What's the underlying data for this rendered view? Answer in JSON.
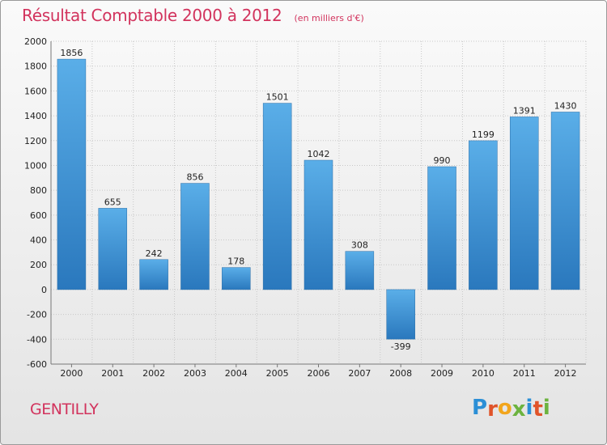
{
  "chart_data": {
    "type": "bar",
    "title": "Résultat Comptable 2000 à 2012",
    "subtitle": "(en milliers d'€)",
    "categories": [
      "2000",
      "2001",
      "2002",
      "2003",
      "2004",
      "2005",
      "2006",
      "2007",
      "2008",
      "2009",
      "2010",
      "2011",
      "2012"
    ],
    "values": [
      1856,
      655,
      242,
      856,
      178,
      1501,
      1042,
      308,
      -399,
      990,
      1199,
      1391,
      1430
    ],
    "ylim": [
      -600,
      2000
    ],
    "yticks": [
      -600,
      -400,
      -200,
      0,
      200,
      400,
      600,
      800,
      1000,
      1200,
      1400,
      1600,
      1800,
      2000
    ],
    "grid": true,
    "xlabel": "",
    "ylabel": ""
  },
  "location": "GENTILLY",
  "brand": {
    "letters": [
      "P",
      "r",
      "o",
      "x",
      "i",
      "t",
      "i"
    ],
    "colors": [
      "#2b8fd6",
      "#e0542a",
      "#f2a51c",
      "#6cb33f",
      "#2b8fd6",
      "#e0542a",
      "#6cb33f"
    ]
  },
  "colors": {
    "title": "#d2335d",
    "bar_top": "#5aaee8",
    "bar_bottom": "#2a78bd",
    "grid": "#c8c8c8"
  }
}
